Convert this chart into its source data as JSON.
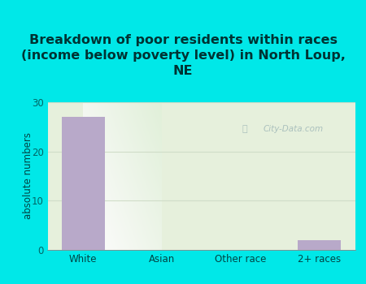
{
  "title": "Breakdown of poor residents within races\n(income below poverty level) in North Loup,\nNE",
  "categories": [
    "White",
    "Asian",
    "Other race",
    "2+ races"
  ],
  "values": [
    27,
    0,
    0,
    2
  ],
  "bar_color": "#b8a9c9",
  "ylabel": "absolute numbers",
  "ylim": [
    0,
    30
  ],
  "yticks": [
    0,
    10,
    20,
    30
  ],
  "bg_outer": "#00e8e8",
  "bg_inner": "#e6f0dc",
  "title_fontsize": 11.5,
  "watermark": "City-Data.com",
  "grid_color": "#d0ddc8",
  "tick_color": "#006666",
  "label_color": "#004444"
}
